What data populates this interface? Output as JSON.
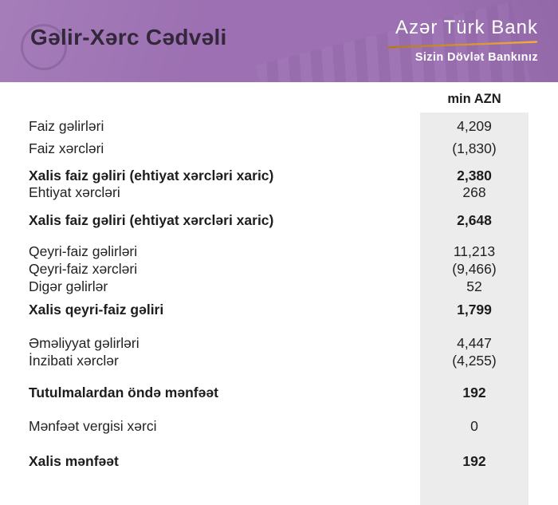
{
  "header": {
    "title": "Gəlir-Xərc Cədvəli",
    "logo_name": "Azər Türk Bank",
    "logo_tagline": "Sizin Dövlət Bankınız"
  },
  "table": {
    "unit_label": "min AZN",
    "groups": [
      {
        "rows": [
          {
            "label": "Faiz gəlirləri",
            "value": "4,209",
            "bold": false
          },
          {
            "label": "Faiz xərcləri",
            "value": "(1,830)",
            "bold": false
          }
        ]
      },
      {
        "rows": [
          {
            "label": "Xalis faiz gəliri (ehtiyat xərcləri xaric)",
            "value": "2,380",
            "bold": true
          },
          {
            "label": "Ehtiyat xərcləri",
            "value": "268",
            "bold": false
          }
        ]
      },
      {
        "rows": [
          {
            "label": "Xalis faiz gəliri (ehtiyat xərcləri xaric)",
            "value": "2,648",
            "bold": true
          }
        ]
      },
      {
        "rows": [
          {
            "label": "Qeyri-faiz gəlirləri",
            "value": "11,213",
            "bold": false
          },
          {
            "label": "Qeyri-faiz xərcləri",
            "value": "(9,466)",
            "bold": false
          },
          {
            "label": "Digər gəlirlər",
            "value": "52",
            "bold": false
          }
        ]
      },
      {
        "rows": [
          {
            "label": "Xalis qeyri-faiz gəliri",
            "value": "1,799",
            "bold": true
          }
        ]
      },
      {
        "rows": [
          {
            "label": "Əməliyyat gəlirləri",
            "value": "4,447",
            "bold": false
          },
          {
            "label": "İnzibati xərclər",
            "value": "(4,255)",
            "bold": false
          }
        ]
      },
      {
        "rows": [
          {
            "label": "Tutulmalardan öndə mənfəət",
            "value": "192",
            "bold": true
          }
        ]
      },
      {
        "rows": [
          {
            "label": "Mənfəət vergisi xərci",
            "value": "0",
            "bold": false
          }
        ]
      },
      {
        "rows": [
          {
            "label": "Xalis mənfəət",
            "value": "192",
            "bold": true
          }
        ]
      }
    ]
  },
  "colors": {
    "header_bg": "#9c70b2",
    "header_title": "#32283a",
    "logo_text": "#ffffff",
    "gold_accent_start": "#b5771e",
    "gold_accent_end": "#f3ac3c",
    "column_bg": "#ececec",
    "body_text": "#222222"
  }
}
